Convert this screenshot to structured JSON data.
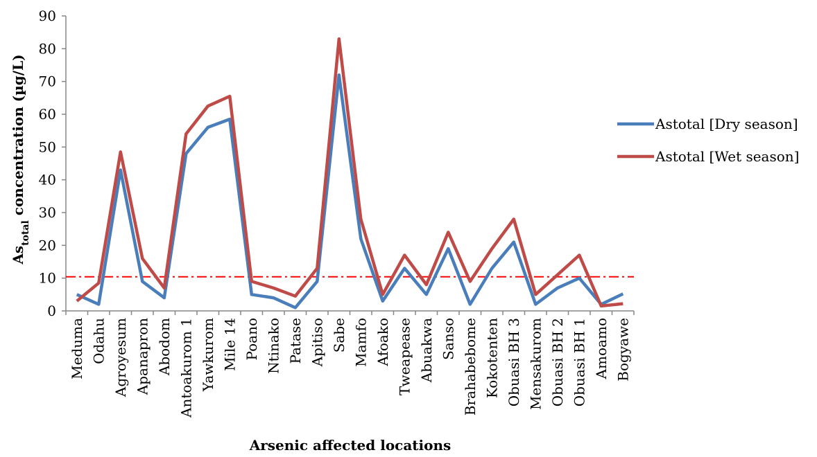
{
  "chart_data": {
    "type": "line",
    "title": "",
    "xlabel": "Arsenic affected locations",
    "ylabel": {
      "prefix": "As",
      "subscript": "total",
      "suffix": " concentration (µg/L)"
    },
    "ylim": [
      0,
      90
    ],
    "yticks": [
      0,
      10,
      20,
      30,
      40,
      50,
      60,
      70,
      80,
      90
    ],
    "grid": false,
    "legend_placement": "right",
    "categories": [
      "Meduma",
      "Odahu",
      "Agroyesum",
      "Apanapron",
      "Abodom",
      "Antoakurom 1",
      "Yawkurom",
      "Mile 14",
      "Poano",
      "Ntinako",
      "Patase",
      "Apitiso",
      "Sabe",
      "Mamfo",
      "Afoako",
      "Tweapease",
      "Abuakwa",
      "Sanso",
      "Brahabebome",
      "Kokotenten",
      "Obuasi BH 3",
      "Mensakurom",
      "Obuasi BH 2",
      "Obuasi BH 1",
      "Amoamo",
      "Bogyawe"
    ],
    "series": [
      {
        "name": "Astotal [Dry season]",
        "color": "#4a7ebb",
        "values": [
          5,
          2,
          43,
          9,
          4,
          48,
          56,
          58.5,
          5,
          4,
          1,
          9,
          72,
          22,
          3,
          13,
          5,
          19,
          2,
          13,
          21,
          2,
          7,
          10,
          2,
          5.2
        ]
      },
      {
        "name": "Astotal [Wet season]",
        "color": "#be4b48",
        "values": [
          3,
          8.5,
          48.5,
          16,
          7,
          54,
          62.5,
          65.5,
          9,
          7,
          4.5,
          13,
          83,
          28,
          5,
          17,
          8,
          24,
          9,
          19,
          28,
          5,
          11,
          17,
          1.5,
          2.2
        ]
      }
    ],
    "reference_line": {
      "value": 10.4,
      "color": "#ff0000",
      "style": "dash-dot"
    }
  }
}
